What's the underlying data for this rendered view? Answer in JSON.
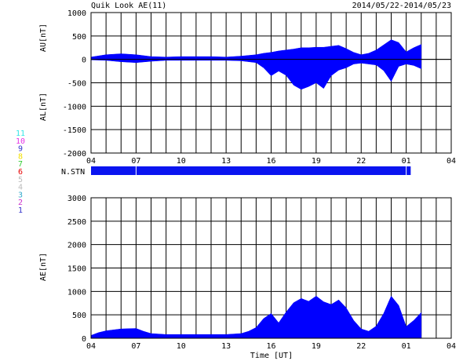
{
  "title": "Quik Look AE(11)",
  "date_range": "2014/05/22-2014/05/23",
  "nstn_label": "N.STN",
  "legend": [
    {
      "label": "11",
      "color": "#33e6e6"
    },
    {
      "label": "10",
      "color": "#e633e6"
    },
    {
      "label": "9",
      "color": "#3333cc"
    },
    {
      "label": "8",
      "color": "#f2e000"
    },
    {
      "label": "7",
      "color": "#33cc33"
    },
    {
      "label": "6",
      "color": "#e60000"
    },
    {
      "label": "5",
      "color": "#bbbbbb"
    },
    {
      "label": "4",
      "color": "#bbbbbb"
    },
    {
      "label": "3",
      "color": "#33aacc"
    },
    {
      "label": "2",
      "color": "#cc33cc"
    },
    {
      "label": "1",
      "color": "#3333cc"
    }
  ],
  "colors": {
    "fill": "#0000ff",
    "grid": "#000000",
    "bar": "#0a14f0"
  },
  "chart_data": [
    {
      "type": "area",
      "name": "AU/AL",
      "ylabel_upper": "AU[nT]",
      "ylabel_lower": "AL[nT]",
      "ylim": [
        -2000,
        1000
      ],
      "yticks": [
        1000,
        500,
        0,
        -500,
        -1000,
        -1500,
        -2000
      ],
      "xticks": [
        "04",
        "07",
        "10",
        "13",
        "16",
        "19",
        "22",
        "01",
        "04"
      ],
      "x_hours": [
        4,
        5,
        6,
        7,
        8,
        9,
        10,
        11,
        12,
        13,
        14,
        15,
        15.5,
        16,
        16.5,
        17,
        17.5,
        18,
        18.5,
        19,
        19.5,
        20,
        20.5,
        21,
        21.5,
        22,
        22.5,
        23,
        23.5,
        24,
        24.5,
        25,
        25.5,
        26
      ],
      "au": [
        50,
        100,
        120,
        100,
        60,
        50,
        60,
        60,
        60,
        50,
        70,
        100,
        130,
        150,
        180,
        200,
        220,
        250,
        250,
        260,
        260,
        280,
        300,
        230,
        150,
        100,
        130,
        200,
        310,
        420,
        360,
        160,
        250,
        320
      ],
      "al": [
        -10,
        -20,
        -50,
        -70,
        -40,
        -20,
        -20,
        -20,
        -20,
        -20,
        -30,
        -70,
        -180,
        -350,
        -250,
        -340,
        -550,
        -640,
        -580,
        -500,
        -620,
        -350,
        -230,
        -180,
        -100,
        -80,
        -100,
        -120,
        -240,
        -470,
        -150,
        -100,
        -130,
        -200
      ]
    },
    {
      "type": "area",
      "name": "AE",
      "ylabel": "AE[nT]",
      "xlabel": "Time [UT]",
      "ylim": [
        0,
        3000
      ],
      "yticks": [
        3000,
        2500,
        2000,
        1500,
        1000,
        500,
        0
      ],
      "xticks": [
        "04",
        "07",
        "10",
        "13",
        "16",
        "19",
        "22",
        "01",
        "04"
      ],
      "x_hours": [
        4,
        4.5,
        5,
        6,
        7,
        7.5,
        8,
        9,
        10,
        11,
        12,
        13,
        14,
        14.5,
        15,
        15.5,
        16,
        16.5,
        17,
        17.5,
        18,
        18.5,
        19,
        19.5,
        20,
        20.5,
        21,
        21.5,
        22,
        22.5,
        23,
        23.5,
        24,
        24.5,
        25,
        25.5,
        26
      ],
      "ae": [
        60,
        120,
        160,
        200,
        210,
        150,
        100,
        80,
        80,
        80,
        80,
        80,
        100,
        150,
        230,
        420,
        530,
        330,
        560,
        760,
        850,
        790,
        900,
        780,
        720,
        820,
        650,
        380,
        200,
        150,
        260,
        530,
        900,
        700,
        250,
        380,
        550
      ]
    }
  ]
}
